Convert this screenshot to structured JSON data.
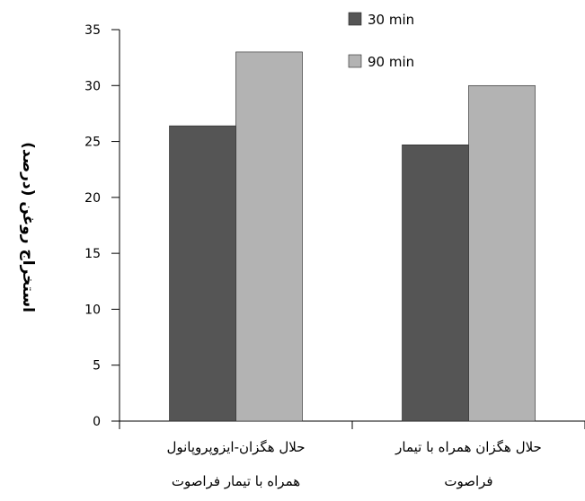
{
  "chart_data": {
    "type": "bar",
    "ylabel": "استخراج روغن (درصد)",
    "xlabel": "",
    "ylim": [
      0,
      35
    ],
    "yticks": [
      0,
      5,
      10,
      15,
      20,
      25,
      30,
      35
    ],
    "grid": false,
    "legend_position": "top-right",
    "categories": [
      [
        "حلال هگزان-ایزوپروپانول",
        "همراه با تیمار فراصوت"
      ],
      [
        "حلال هگزان همراه با تیمار",
        "فراصوت"
      ]
    ],
    "series": [
      {
        "name": "30 min",
        "color": "#555555",
        "values": [
          26.4,
          24.7
        ]
      },
      {
        "name": "90 min",
        "color": "#b3b3b3",
        "values": [
          33.0,
          30.0
        ]
      }
    ]
  }
}
